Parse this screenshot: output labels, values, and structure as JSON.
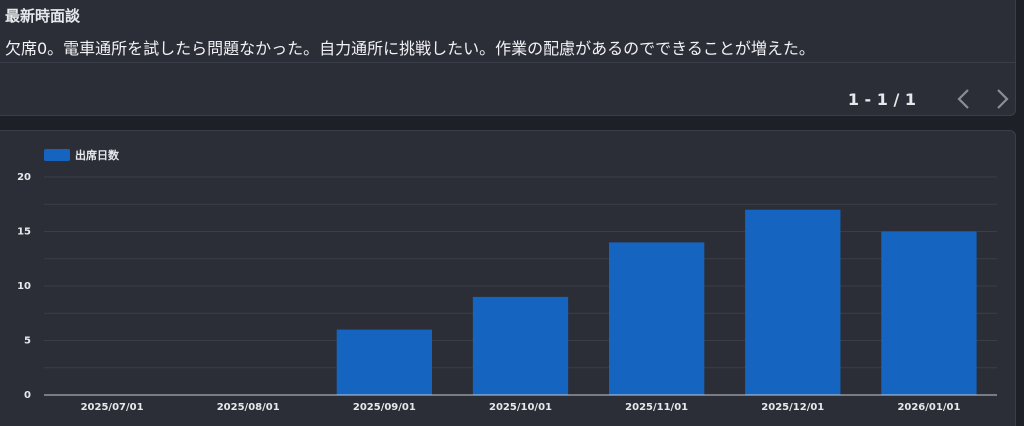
{
  "interview": {
    "title": "最新時面談",
    "text": "欠席0。電車通所を試したら問題なかった。自力通所に挑戦したい。作業の配慮があるのでできることが増えた。"
  },
  "pager": {
    "range_text": "1 - 1 / 1"
  },
  "colors": {
    "bar": "#1565c0",
    "grid": "#3a3e48",
    "text": "#e6e8ec"
  },
  "chart_data": {
    "type": "bar",
    "categories": [
      "2025/07/01",
      "2025/08/01",
      "2025/09/01",
      "2025/10/01",
      "2025/11/01",
      "2025/12/01",
      "2026/01/01"
    ],
    "series": [
      {
        "name": "出席日数",
        "values": [
          0,
          0,
          6,
          9,
          14,
          17,
          15
        ]
      }
    ],
    "yticks": [
      "0",
      "5",
      "10",
      "15",
      "20"
    ],
    "ylim": [
      0,
      20
    ],
    "grid": true,
    "legend": "top-left"
  }
}
